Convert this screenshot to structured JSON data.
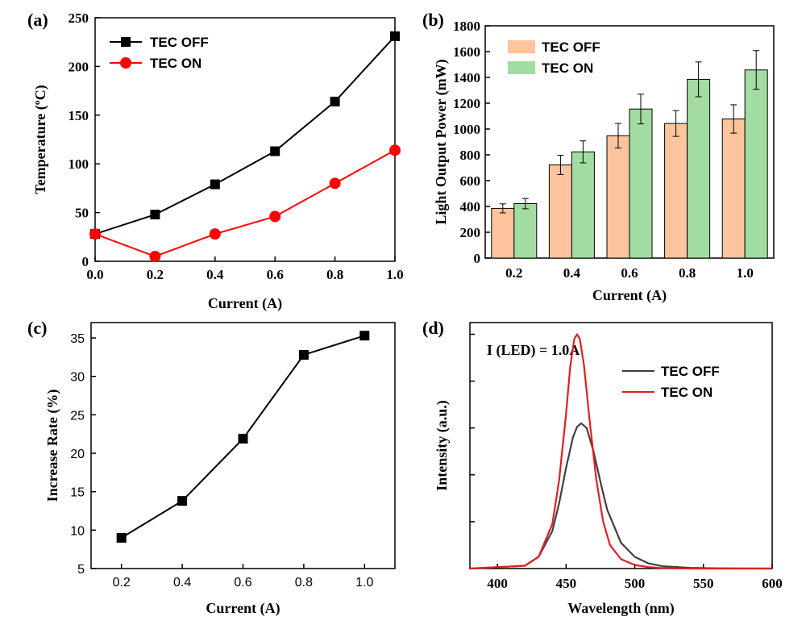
{
  "chart_data": [
    {
      "panel": "(a)",
      "type": "line",
      "xlabel": "Current (A)",
      "ylabel": "Temperature (ºC)",
      "xlim": [
        0,
        1.0
      ],
      "ylim": [
        0,
        250
      ],
      "xticks": [
        "0.0",
        "0.2",
        "0.4",
        "0.6",
        "0.8",
        "1.0"
      ],
      "yticks": [
        "0",
        "50",
        "100",
        "150",
        "200",
        "250"
      ],
      "legend_position": "top-left",
      "series": [
        {
          "name": "TEC OFF",
          "color": "#000000",
          "marker": "square",
          "x": [
            0.0,
            0.2,
            0.4,
            0.6,
            0.8,
            1.0
          ],
          "y": [
            28,
            48,
            79,
            113,
            164,
            231
          ]
        },
        {
          "name": "TEC ON",
          "color": "#ff0000",
          "marker": "circle",
          "x": [
            0.0,
            0.2,
            0.4,
            0.6,
            0.8,
            1.0
          ],
          "y": [
            28,
            5,
            28,
            46,
            80,
            114
          ]
        }
      ]
    },
    {
      "panel": "(b)",
      "type": "bar",
      "xlabel": "Current (A)",
      "ylabel": "Light Output Power (mW)",
      "categories": [
        "0.2",
        "0.4",
        "0.6",
        "0.8",
        "1.0"
      ],
      "ylim": [
        0,
        1800
      ],
      "yticks": [
        "0",
        "200",
        "400",
        "600",
        "800",
        "1000",
        "1200",
        "1400",
        "1600",
        "1800"
      ],
      "legend_position": "top-left",
      "series": [
        {
          "name": "TEC OFF",
          "color": "#fdc49e",
          "values": [
            385,
            722,
            948,
            1043,
            1078
          ],
          "errors": [
            35,
            75,
            95,
            100,
            110
          ]
        },
        {
          "name": "TEC ON",
          "color": "#a3dca2",
          "values": [
            422,
            823,
            1155,
            1385,
            1458
          ],
          "errors": [
            40,
            85,
            115,
            135,
            150
          ]
        }
      ]
    },
    {
      "panel": "(c)",
      "type": "line",
      "xlabel": "Current (A)",
      "ylabel": "Increase Rate (%)",
      "xlim": [
        0.1,
        1.1
      ],
      "ylim": [
        5,
        37
      ],
      "xticks": [
        "0.2",
        "0.4",
        "0.6",
        "0.8",
        "1.0"
      ],
      "yticks": [
        "5",
        "10",
        "15",
        "20",
        "25",
        "30",
        "35"
      ],
      "series": [
        {
          "color": "#000000",
          "marker": "square",
          "x": [
            0.2,
            0.4,
            0.6,
            0.8,
            1.0
          ],
          "y": [
            9.0,
            13.8,
            21.9,
            32.8,
            35.3
          ]
        }
      ]
    },
    {
      "panel": "(d)",
      "type": "line",
      "xlabel": "Wavelength (nm)",
      "ylabel": "Intensity (a.u.)",
      "xlim": [
        380,
        600
      ],
      "ylim": [
        0,
        1.05
      ],
      "xticks": [
        "400",
        "450",
        "500",
        "550",
        "600"
      ],
      "annotation": "I (LED) = 1.0A",
      "legend_position": "top-right",
      "series": [
        {
          "name": "TEC OFF",
          "color": "#404040",
          "x": [
            380,
            420,
            430,
            440,
            445,
            450,
            455,
            458,
            461,
            465,
            470,
            475,
            480,
            490,
            500,
            510,
            520,
            540,
            560,
            600
          ],
          "y": [
            0,
            0.012,
            0.05,
            0.16,
            0.28,
            0.43,
            0.56,
            0.605,
            0.62,
            0.6,
            0.5,
            0.37,
            0.25,
            0.11,
            0.05,
            0.022,
            0.01,
            0.003,
            0.001,
            0
          ]
        },
        {
          "name": "TEC   ON",
          "color": "#e02020",
          "x": [
            380,
            420,
            430,
            440,
            445,
            450,
            453,
            456,
            458,
            460,
            463,
            467,
            472,
            477,
            482,
            490,
            500,
            510,
            520,
            540,
            600
          ],
          "y": [
            0,
            0.012,
            0.05,
            0.19,
            0.38,
            0.66,
            0.86,
            0.98,
            1.0,
            0.98,
            0.87,
            0.64,
            0.38,
            0.2,
            0.1,
            0.04,
            0.015,
            0.006,
            0.002,
            0,
            0
          ]
        }
      ]
    }
  ]
}
